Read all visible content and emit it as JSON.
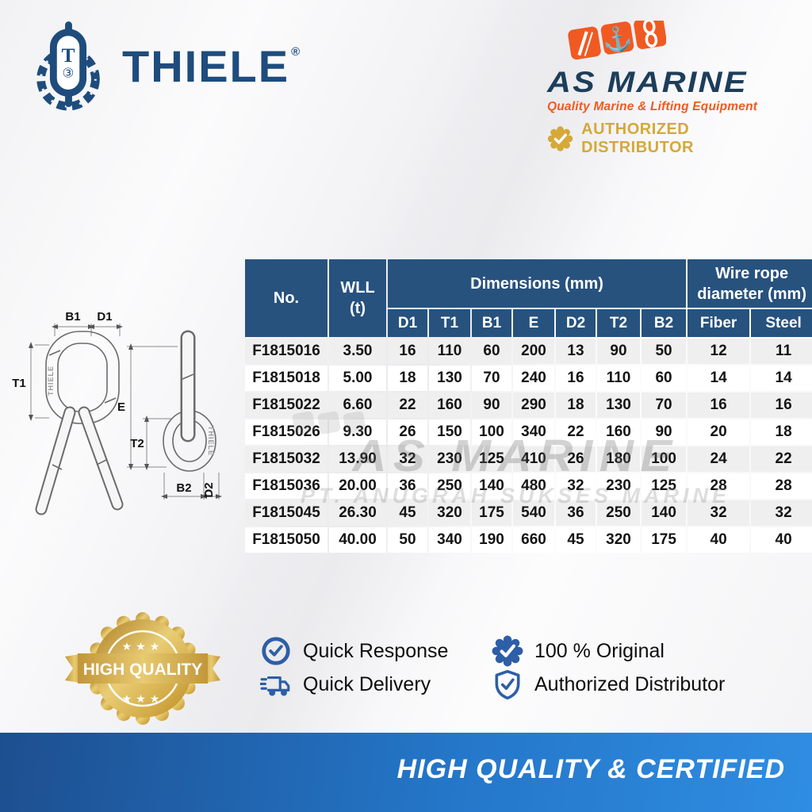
{
  "colors": {
    "thiele_navy": "#1e4c7d",
    "table_header_navy": "#27527e",
    "asmarine_navy": "#1d3e5a",
    "orange": "#f05a22",
    "gold": "#d5a839",
    "feature_blue": "#2e5ea6",
    "row_stripe_gray": "#efefef",
    "banner_blue_left": "#1d4f90",
    "banner_blue_right": "#2f8de2"
  },
  "header": {
    "thiele": {
      "name": "THIELE",
      "reg": "®"
    },
    "asmarine": {
      "name": "AS MARINE",
      "tagline": "Quality Marine & Lifting Equipment",
      "badge": "AUTHORIZED DISTRIBUTOR"
    }
  },
  "diagram": {
    "engraving": "THIELE",
    "labels": {
      "b1": "B1",
      "d1": "D1",
      "t1": "T1",
      "e": "E",
      "t2": "T2",
      "b2": "B2",
      "d2": "D2"
    }
  },
  "table": {
    "header": {
      "no": "No.",
      "wll_line1": "WLL",
      "wll_line2": "(t)",
      "dimensions": "Dimensions (mm)",
      "wire_rope": "Wire rope diameter (mm)",
      "sub": [
        "D1",
        "T1",
        "B1",
        "E",
        "D2",
        "T2",
        "B2",
        "Fiber",
        "Steel"
      ]
    },
    "rows": [
      [
        "F1815016",
        "3.50",
        "16",
        "110",
        "60",
        "200",
        "13",
        "90",
        "50",
        "12",
        "11"
      ],
      [
        "F1815018",
        "5.00",
        "18",
        "130",
        "70",
        "240",
        "16",
        "110",
        "60",
        "14",
        "14"
      ],
      [
        "F1815022",
        "6.60",
        "22",
        "160",
        "90",
        "290",
        "18",
        "130",
        "70",
        "16",
        "16"
      ],
      [
        "F1815026",
        "9.30",
        "26",
        "150",
        "100",
        "340",
        "22",
        "160",
        "90",
        "20",
        "18"
      ],
      [
        "F1815032",
        "13.90",
        "32",
        "230",
        "125",
        "410",
        "26",
        "180",
        "100",
        "24",
        "22"
      ],
      [
        "F1815036",
        "20.00",
        "36",
        "250",
        "140",
        "480",
        "32",
        "230",
        "125",
        "28",
        "28"
      ],
      [
        "F1815045",
        "26.30",
        "45",
        "320",
        "175",
        "540",
        "36",
        "250",
        "140",
        "32",
        "32"
      ],
      [
        "F1815050",
        "40.00",
        "50",
        "340",
        "190",
        "660",
        "45",
        "320",
        "175",
        "40",
        "40"
      ]
    ]
  },
  "watermark": {
    "line1": "AS MARINE",
    "line2": "PT. ANUGRAH SUKSES MARINE"
  },
  "quality_badge": {
    "label": "HIGH QUALITY"
  },
  "features": {
    "quick_response": "Quick Response",
    "quick_delivery": "Quick Delivery",
    "original": "100 % Original",
    "authorized": "Authorized Distributor"
  },
  "footer": {
    "banner": "HIGH QUALITY & CERTIFIED"
  }
}
